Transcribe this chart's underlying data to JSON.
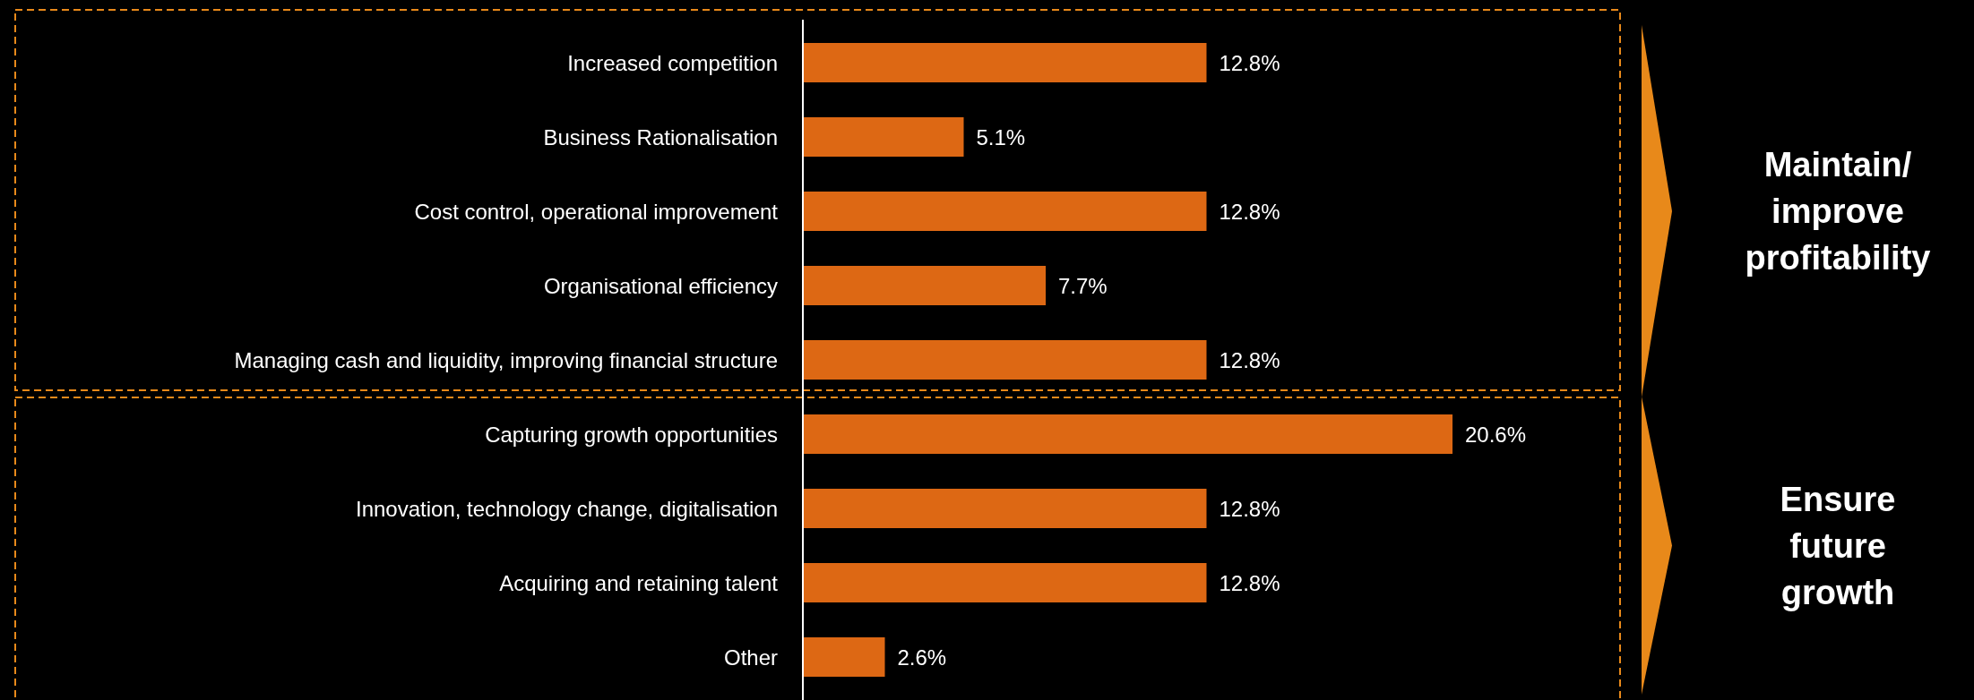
{
  "chart_data": {
    "type": "bar",
    "orientation": "horizontal",
    "categories": [
      "Increased competition",
      "Business Rationalisation",
      "Cost control, operational improvement",
      "Organisational efficiency",
      "Managing cash and liquidity, improving financial structure",
      "Capturing growth opportunities",
      "Innovation, technology change, digitalisation",
      "Acquiring and retaining talent",
      "Other"
    ],
    "values": [
      12.8,
      5.1,
      12.8,
      7.7,
      12.8,
      20.6,
      12.8,
      12.8,
      2.6
    ],
    "value_labels": [
      "12.8%",
      "5.1%",
      "12.8%",
      "7.7%",
      "12.8%",
      "20.6%",
      "12.8%",
      "12.8%",
      "2.6%"
    ],
    "color": "#dd6814",
    "annotations": [
      "Maintain/ improve profitability",
      "Ensure future growth"
    ]
  }
}
